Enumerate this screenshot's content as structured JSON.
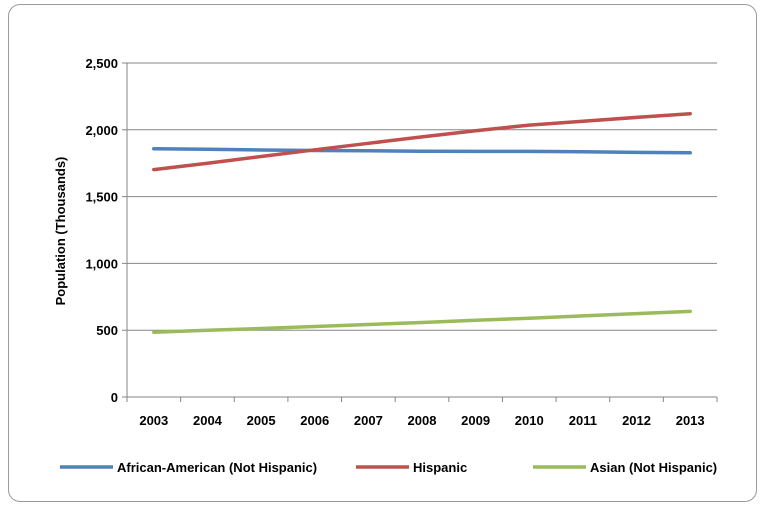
{
  "chart_data": {
    "type": "line",
    "title": "",
    "xlabel": "",
    "ylabel": "Population (Thousands)",
    "ylim": [
      0,
      2500
    ],
    "yticks": [
      0,
      500,
      1000,
      1500,
      2000,
      2500
    ],
    "ytick_labels": [
      "0",
      "500",
      "1,000",
      "1,500",
      "2,000",
      "2,500"
    ],
    "grid": true,
    "legend_position": "bottom",
    "x": [
      "2003",
      "2004",
      "2005",
      "2006",
      "2007",
      "2008",
      "2009",
      "2010",
      "2011",
      "2012",
      "2013"
    ],
    "series": [
      {
        "name": "African-American (Not Hispanic)",
        "color": "#4F81BD",
        "values": [
          1858,
          1855,
          1849,
          1845,
          1843,
          1840,
          1838,
          1838,
          1835,
          1831,
          1828
        ]
      },
      {
        "name": "Hispanic",
        "color": "#C0504D",
        "values": [
          1702,
          1750,
          1800,
          1850,
          1899,
          1947,
          1993,
          2035,
          2064,
          2093,
          2120
        ]
      },
      {
        "name": "Asian (Not Hispanic)",
        "color": "#9BBB59",
        "values": [
          485,
          500,
          513,
          528,
          543,
          558,
          574,
          590,
          607,
          624,
          641
        ]
      }
    ]
  }
}
